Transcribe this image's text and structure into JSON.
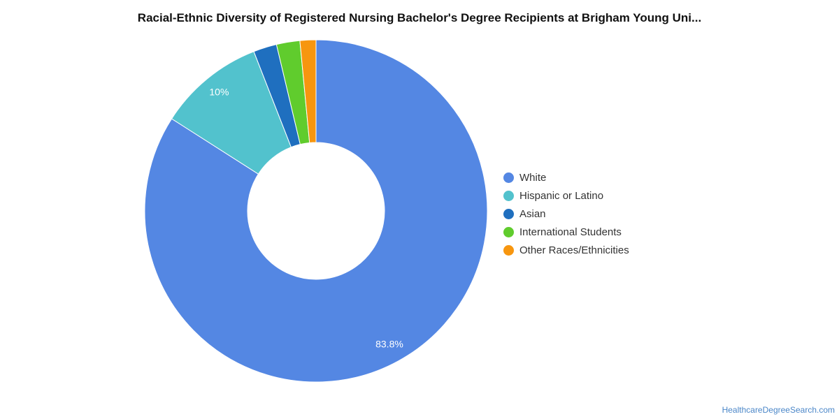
{
  "chart_data": {
    "type": "pie",
    "title": "Racial-Ethnic Diversity of Registered Nursing Bachelor's Degree Recipients at Brigham Young Uni...",
    "categories": [
      "White",
      "Hispanic or Latino",
      "Asian",
      "International Students",
      "Other Races/Ethnicities"
    ],
    "values": [
      83.8,
      10,
      2.2,
      2.2,
      1.5
    ],
    "colors": [
      "#5487e3",
      "#52c2cd",
      "#1f6fbf",
      "#60cc2d",
      "#f7960f"
    ],
    "data_labels": [
      "83.8%",
      "10%",
      "",
      "",
      ""
    ],
    "legend_position": "right",
    "donut": true
  },
  "footer": {
    "source": "HealthcareDegreeSearch.com"
  }
}
